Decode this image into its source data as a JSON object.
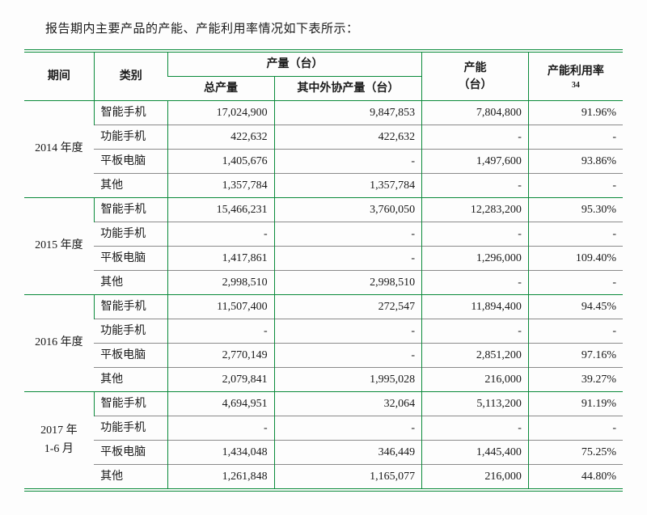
{
  "caption": "报告期内主要产品的产能、产能利用率情况如下表所示：",
  "colors": {
    "border_green": "#0a8a3a",
    "border_grey": "#8a8a8a",
    "text": "#1a1a1a",
    "background": "#fefefe"
  },
  "header": {
    "period": "期间",
    "category": "类别",
    "output_group": "产量（台）",
    "output_total": "总产量",
    "output_outsourced": "其中外协产量（台）",
    "capacity": "产能",
    "capacity_unit": "（台）",
    "utilization": "产能利用率",
    "utilization_sup": "34"
  },
  "categories": [
    "智能手机",
    "功能手机",
    "平板电脑",
    "其他"
  ],
  "periods": [
    {
      "label": "2014 年度",
      "rows": [
        {
          "cat": "智能手机",
          "total": "17,024,900",
          "outsourced": "9,847,853",
          "capacity": "7,804,800",
          "rate": "91.96%"
        },
        {
          "cat": "功能手机",
          "total": "422,632",
          "outsourced": "422,632",
          "capacity": "-",
          "rate": "-"
        },
        {
          "cat": "平板电脑",
          "total": "1,405,676",
          "outsourced": "-",
          "capacity": "1,497,600",
          "rate": "93.86%"
        },
        {
          "cat": "其他",
          "total": "1,357,784",
          "outsourced": "1,357,784",
          "capacity": "-",
          "rate": "-"
        }
      ]
    },
    {
      "label": "2015 年度",
      "rows": [
        {
          "cat": "智能手机",
          "total": "15,466,231",
          "outsourced": "3,760,050",
          "capacity": "12,283,200",
          "rate": "95.30%"
        },
        {
          "cat": "功能手机",
          "total": "-",
          "outsourced": "-",
          "capacity": "-",
          "rate": "-"
        },
        {
          "cat": "平板电脑",
          "total": "1,417,861",
          "outsourced": "-",
          "capacity": "1,296,000",
          "rate": "109.40%"
        },
        {
          "cat": "其他",
          "total": "2,998,510",
          "outsourced": "2,998,510",
          "capacity": "-",
          "rate": "-"
        }
      ]
    },
    {
      "label": "2016 年度",
      "rows": [
        {
          "cat": "智能手机",
          "total": "11,507,400",
          "outsourced": "272,547",
          "capacity": "11,894,400",
          "rate": "94.45%"
        },
        {
          "cat": "功能手机",
          "total": "-",
          "outsourced": "-",
          "capacity": "-",
          "rate": "-"
        },
        {
          "cat": "平板电脑",
          "total": "2,770,149",
          "outsourced": "-",
          "capacity": "2,851,200",
          "rate": "97.16%"
        },
        {
          "cat": "其他",
          "total": "2,079,841",
          "outsourced": "1,995,028",
          "capacity": "216,000",
          "rate": "39.27%"
        }
      ]
    },
    {
      "label": "2017 年\n1-6 月",
      "rows": [
        {
          "cat": "智能手机",
          "total": "4,694,951",
          "outsourced": "32,064",
          "capacity": "5,113,200",
          "rate": "91.19%"
        },
        {
          "cat": "功能手机",
          "total": "-",
          "outsourced": "-",
          "capacity": "-",
          "rate": "-"
        },
        {
          "cat": "平板电脑",
          "total": "1,434,048",
          "outsourced": "346,449",
          "capacity": "1,445,400",
          "rate": "75.25%"
        },
        {
          "cat": "其他",
          "total": "1,261,848",
          "outsourced": "1,165,077",
          "capacity": "216,000",
          "rate": "44.80%"
        }
      ]
    }
  ]
}
